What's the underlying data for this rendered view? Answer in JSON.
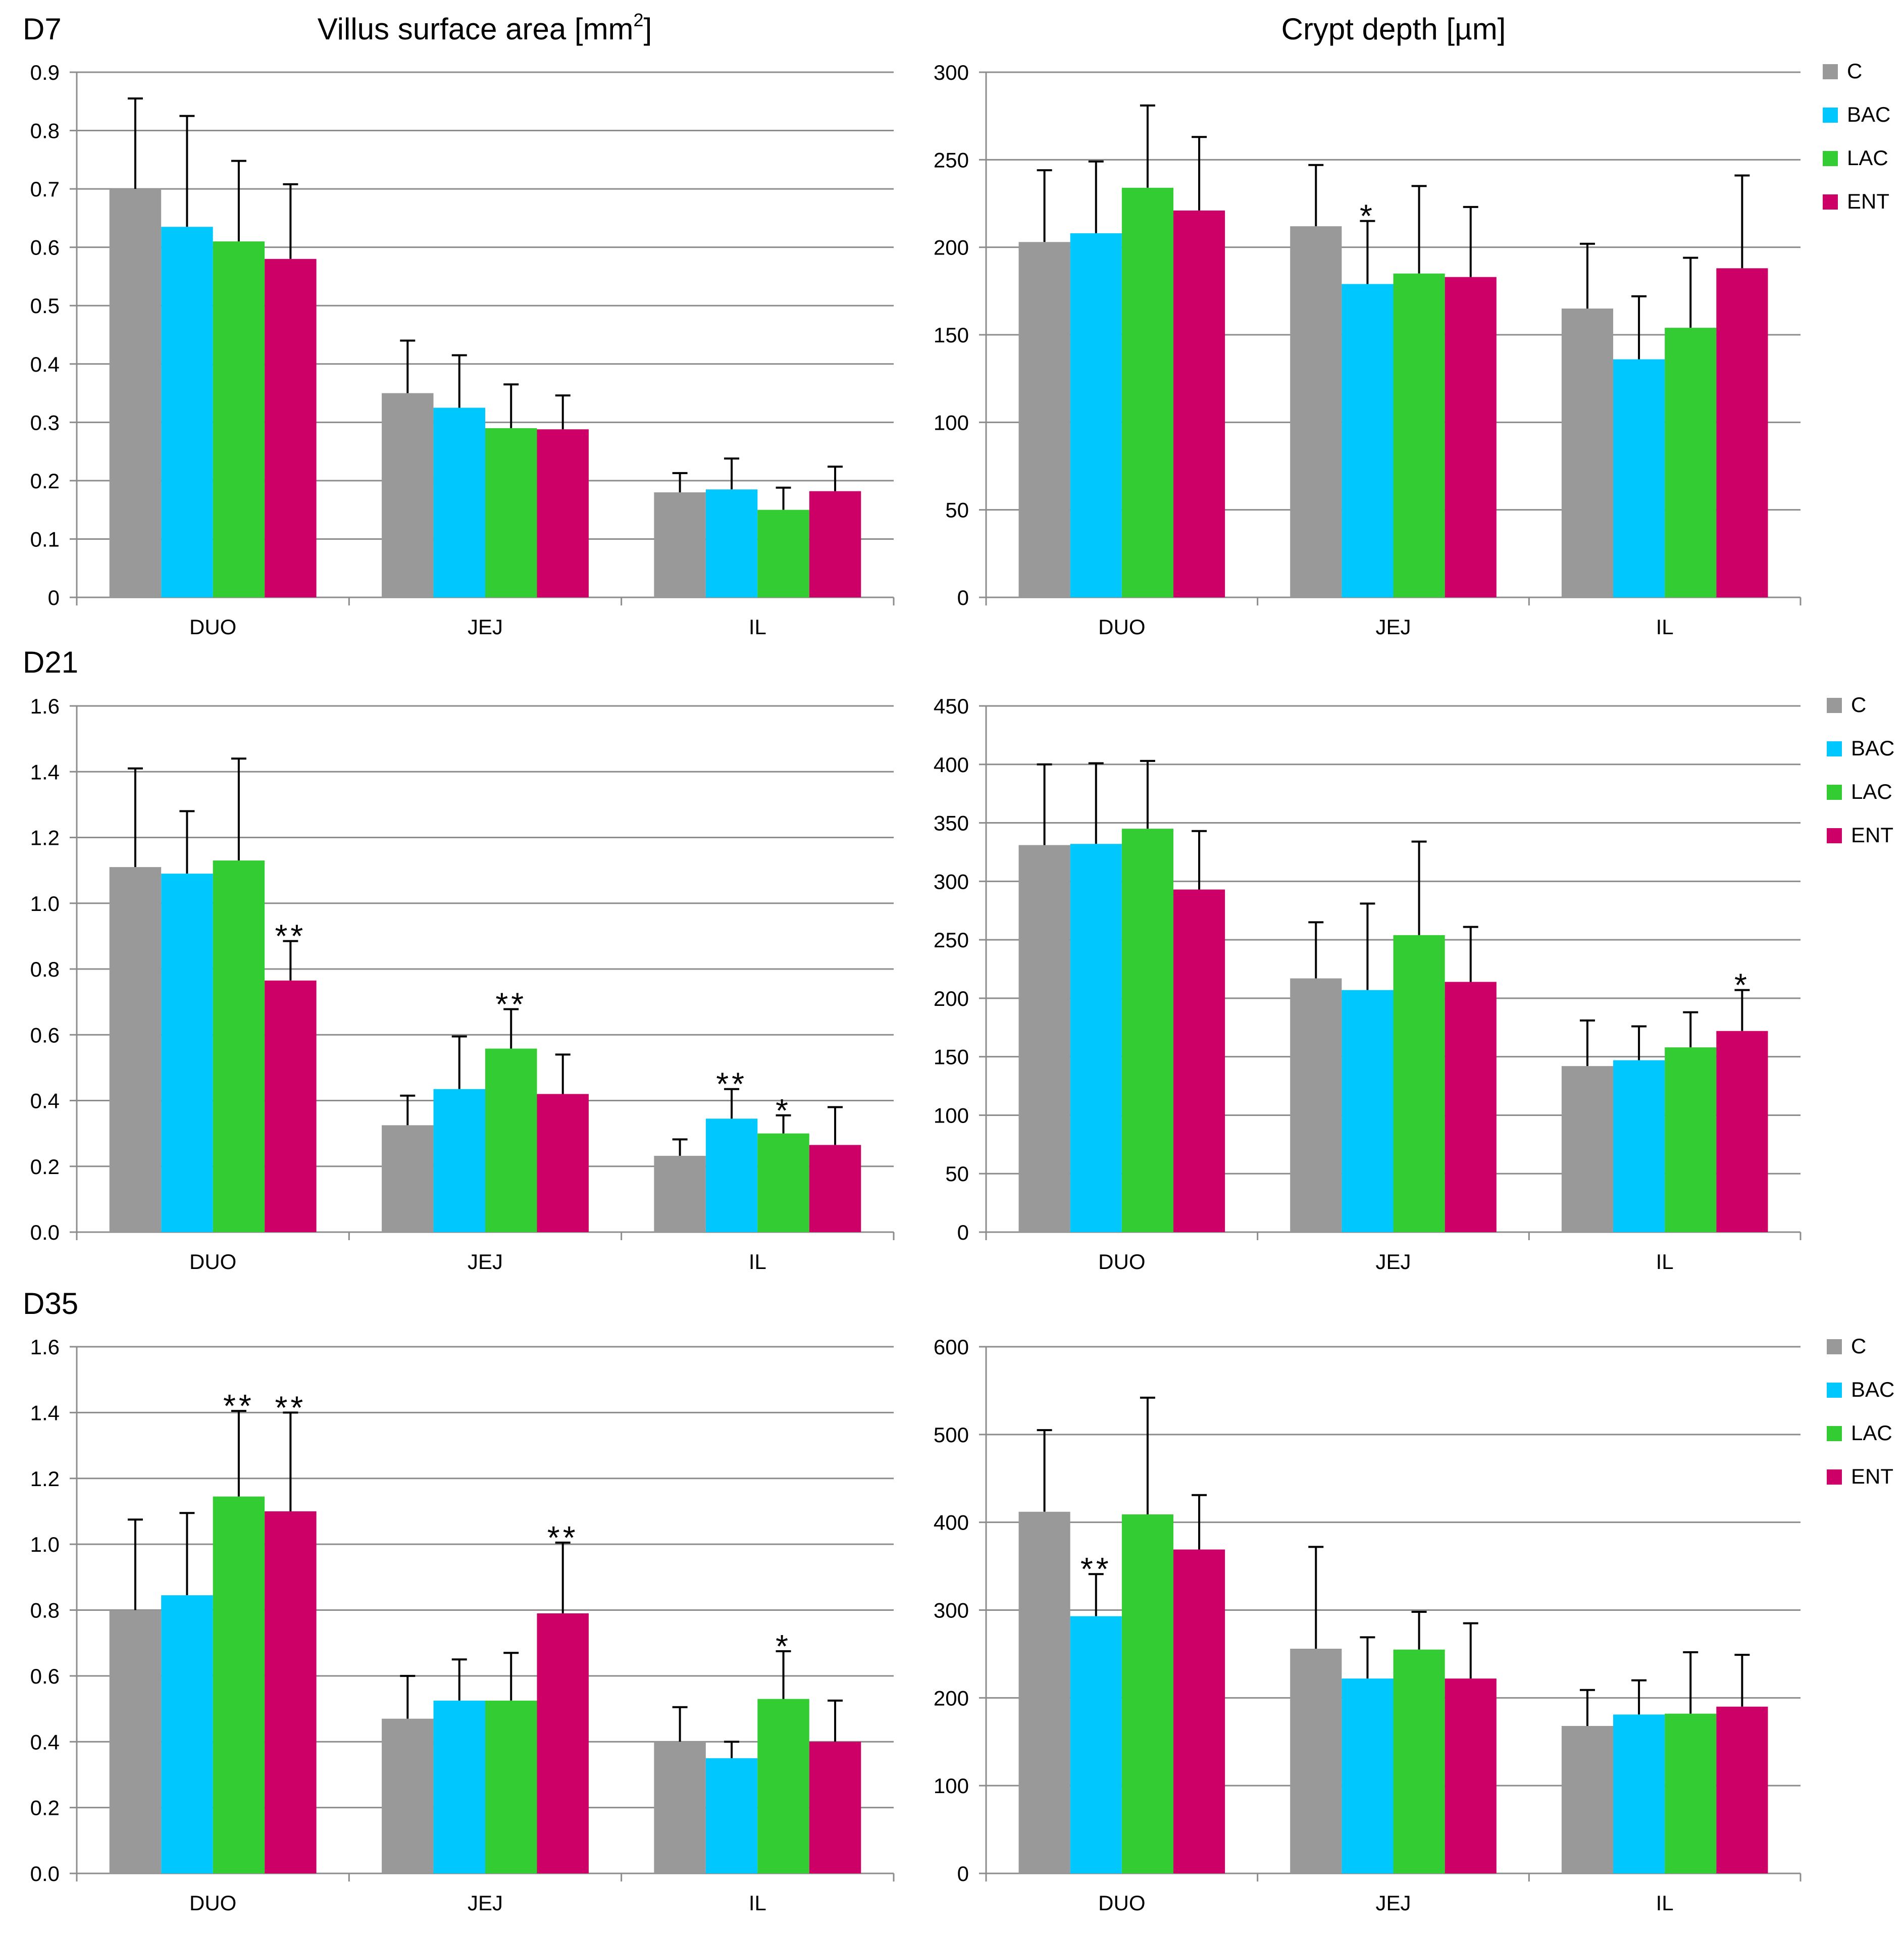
{
  "figure": {
    "column_titles": {
      "left": {
        "main": "Villus surface area [mm",
        "sup": "2",
        "tail": "]"
      },
      "right": "Crypt depth [µm]"
    },
    "row_labels": [
      "D7",
      "D21",
      "D35"
    ]
  },
  "legend": [
    {
      "label": "C",
      "color": "#999999"
    },
    {
      "label": "BAC",
      "color": "#00C8FF"
    },
    {
      "label": "LAC",
      "color": "#33CC33"
    },
    {
      "label": "ENT",
      "color": "#CC0066"
    }
  ],
  "chart_data": [
    {
      "type": "bar",
      "panel": "D7-villus",
      "title": "Villus surface area [mm²]",
      "categories": [
        "DUO",
        "JEJ",
        "IL"
      ],
      "ylim": [
        0,
        0.9
      ],
      "yticks": [
        "0",
        "0.1",
        "0.2",
        "0.3",
        "0.4",
        "0.5",
        "0.6",
        "0.7",
        "0.8",
        "0.9"
      ],
      "grid": true,
      "legend": false,
      "series": [
        {
          "name": "C",
          "values": [
            0.7,
            0.35,
            0.18
          ],
          "errors": [
            0.155,
            0.09,
            0.033
          ],
          "annotations": [
            "",
            "",
            ""
          ]
        },
        {
          "name": "BAC",
          "values": [
            0.635,
            0.325,
            0.185
          ],
          "errors": [
            0.19,
            0.09,
            0.053
          ],
          "annotations": [
            "",
            "",
            ""
          ]
        },
        {
          "name": "LAC",
          "values": [
            0.61,
            0.29,
            0.15
          ],
          "errors": [
            0.138,
            0.075,
            0.038
          ],
          "annotations": [
            "",
            "",
            ""
          ]
        },
        {
          "name": "ENT",
          "values": [
            0.58,
            0.288,
            0.182
          ],
          "errors": [
            0.128,
            0.058,
            0.042
          ],
          "annotations": [
            "",
            "",
            ""
          ]
        }
      ]
    },
    {
      "type": "bar",
      "panel": "D7-crypt",
      "title": "Crypt depth [µm]",
      "categories": [
        "DUO",
        "JEJ",
        "IL"
      ],
      "ylim": [
        0,
        300
      ],
      "yticks": [
        "0",
        "50",
        "100",
        "150",
        "200",
        "250",
        "300"
      ],
      "grid": true,
      "legend": "top-right",
      "series": [
        {
          "name": "C",
          "values": [
            203,
            212,
            165
          ],
          "errors": [
            41,
            35,
            37
          ],
          "annotations": [
            "",
            "",
            ""
          ]
        },
        {
          "name": "BAC",
          "values": [
            208,
            179,
            136
          ],
          "errors": [
            41,
            36,
            36
          ],
          "annotations": [
            "",
            "*",
            ""
          ]
        },
        {
          "name": "LAC",
          "values": [
            234,
            185,
            154
          ],
          "errors": [
            47,
            50,
            40
          ],
          "annotations": [
            "",
            "",
            ""
          ]
        },
        {
          "name": "ENT",
          "values": [
            221,
            183,
            188
          ],
          "errors": [
            42,
            40,
            53
          ],
          "annotations": [
            "",
            "",
            ""
          ]
        }
      ]
    },
    {
      "type": "bar",
      "panel": "D21-villus",
      "title": "",
      "categories": [
        "DUO",
        "JEJ",
        "IL"
      ],
      "ylim": [
        0,
        1.6
      ],
      "yticks": [
        "0.0",
        "0.2",
        "0.4",
        "0.6",
        "0.8",
        "1.0",
        "1.2",
        "1.4",
        "1.6"
      ],
      "grid": true,
      "legend": false,
      "series": [
        {
          "name": "C",
          "values": [
            1.11,
            0.325,
            0.232
          ],
          "errors": [
            0.3,
            0.09,
            0.05
          ],
          "annotations": [
            "",
            "",
            ""
          ]
        },
        {
          "name": "BAC",
          "values": [
            1.09,
            0.435,
            0.345
          ],
          "errors": [
            0.19,
            0.16,
            0.09
          ],
          "annotations": [
            "",
            "",
            "**"
          ]
        },
        {
          "name": "LAC",
          "values": [
            1.13,
            0.558,
            0.3
          ],
          "errors": [
            0.31,
            0.12,
            0.055
          ],
          "annotations": [
            "",
            "**",
            "*"
          ]
        },
        {
          "name": "ENT",
          "values": [
            0.765,
            0.42,
            0.265
          ],
          "errors": [
            0.12,
            0.12,
            0.115
          ],
          "annotations": [
            "**",
            "",
            ""
          ]
        }
      ]
    },
    {
      "type": "bar",
      "panel": "D21-crypt",
      "title": "",
      "categories": [
        "DUO",
        "JEJ",
        "IL"
      ],
      "ylim": [
        0,
        450
      ],
      "yticks": [
        "0",
        "50",
        "100",
        "150",
        "200",
        "250",
        "300",
        "350",
        "400",
        "450"
      ],
      "grid": true,
      "legend": "top-right",
      "series": [
        {
          "name": "C",
          "values": [
            331,
            217,
            142
          ],
          "errors": [
            69,
            48,
            39
          ],
          "annotations": [
            "",
            "",
            ""
          ]
        },
        {
          "name": "BAC",
          "values": [
            332,
            207,
            147
          ],
          "errors": [
            69,
            74,
            29
          ],
          "annotations": [
            "",
            "",
            ""
          ]
        },
        {
          "name": "LAC",
          "values": [
            345,
            254,
            158
          ],
          "errors": [
            58,
            80,
            30
          ],
          "annotations": [
            "",
            "",
            ""
          ]
        },
        {
          "name": "ENT",
          "values": [
            293,
            214,
            172
          ],
          "errors": [
            50,
            47,
            35
          ],
          "annotations": [
            "",
            "",
            "*"
          ]
        }
      ]
    },
    {
      "type": "bar",
      "panel": "D35-villus",
      "title": "",
      "categories": [
        "DUO",
        "JEJ",
        "IL"
      ],
      "ylim": [
        0,
        1.6
      ],
      "yticks": [
        "0.0",
        "0.2",
        "0.4",
        "0.6",
        "0.8",
        "1.0",
        "1.2",
        "1.4",
        "1.6"
      ],
      "grid": true,
      "legend": false,
      "series": [
        {
          "name": "C",
          "values": [
            0.8,
            0.47,
            0.4
          ],
          "errors": [
            0.275,
            0.13,
            0.105
          ],
          "annotations": [
            "",
            "",
            ""
          ]
        },
        {
          "name": "BAC",
          "values": [
            0.845,
            0.525,
            0.35
          ],
          "errors": [
            0.25,
            0.125,
            0.05
          ],
          "annotations": [
            "",
            "",
            ""
          ]
        },
        {
          "name": "LAC",
          "values": [
            1.145,
            0.525,
            0.53
          ],
          "errors": [
            0.26,
            0.145,
            0.145
          ],
          "annotations": [
            "**",
            "",
            "*"
          ]
        },
        {
          "name": "ENT",
          "values": [
            1.1,
            0.79,
            0.4
          ],
          "errors": [
            0.3,
            0.215,
            0.125
          ],
          "annotations": [
            "**",
            "**",
            ""
          ]
        }
      ]
    },
    {
      "type": "bar",
      "panel": "D35-crypt",
      "title": "",
      "categories": [
        "DUO",
        "JEJ",
        "IL"
      ],
      "ylim": [
        0,
        600
      ],
      "yticks": [
        "0",
        "100",
        "200",
        "300",
        "400",
        "500",
        "600"
      ],
      "grid": true,
      "legend": "top-right",
      "series": [
        {
          "name": "C",
          "values": [
            412,
            256,
            168
          ],
          "errors": [
            93,
            116,
            41
          ],
          "annotations": [
            "",
            "",
            ""
          ]
        },
        {
          "name": "BAC",
          "values": [
            293,
            222,
            181
          ],
          "errors": [
            48,
            47,
            39
          ],
          "annotations": [
            "**",
            "",
            ""
          ]
        },
        {
          "name": "LAC",
          "values": [
            409,
            255,
            182
          ],
          "errors": [
            133,
            43,
            70
          ],
          "annotations": [
            "",
            "",
            ""
          ]
        },
        {
          "name": "ENT",
          "values": [
            369,
            222,
            190
          ],
          "errors": [
            62,
            63,
            59
          ],
          "annotations": [
            "",
            "",
            ""
          ]
        }
      ]
    }
  ]
}
